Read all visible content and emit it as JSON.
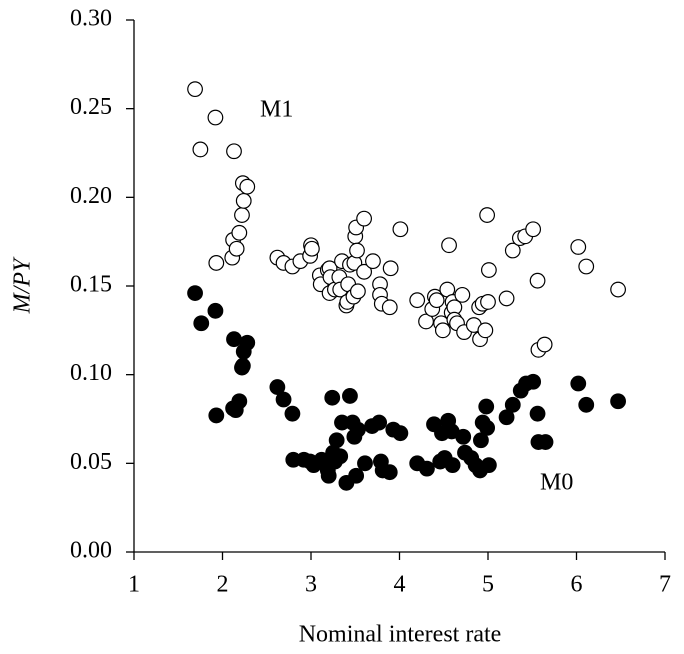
{
  "chart_data": {
    "type": "scatter",
    "x_label": "Nominal interest rate",
    "y_label": "M/PY",
    "xlim": [
      1,
      7
    ],
    "xticks": [
      1,
      2,
      3,
      4,
      5,
      6,
      7
    ],
    "ylim": [
      0,
      0.3
    ],
    "yticks": [
      {
        "value": 0,
        "label": "0.00"
      },
      0.05,
      {
        "value": 0.1,
        "label": "0.10"
      },
      0.15,
      {
        "value": 0.2,
        "label": "0.20"
      },
      0.25,
      {
        "value": 0.3,
        "label": "0.30"
      }
    ],
    "grid": false,
    "series": [
      {
        "name": "M1",
        "color": "#ffffff",
        "x": [
          1.69,
          1.75,
          1.92,
          1.93,
          2.13,
          2.11,
          2.12,
          2.16,
          2.19,
          2.22,
          2.24,
          2.23,
          2.28,
          2.62,
          2.69,
          2.79,
          2.88,
          2.99,
          3.0,
          3.01,
          3.1,
          3.11,
          3.19,
          3.21,
          3.22,
          3.21,
          3.27,
          3.32,
          3.33,
          3.35,
          3.4,
          3.41,
          3.42,
          3.44,
          3.48,
          3.49,
          3.5,
          3.51,
          3.52,
          3.53,
          3.6,
          3.6,
          3.7,
          3.78,
          3.78,
          3.8,
          3.89,
          3.9,
          4.01,
          4.2,
          4.3,
          4.37,
          4.4,
          4.42,
          4.47,
          4.49,
          4.54,
          4.56,
          4.59,
          4.6,
          4.62,
          4.62,
          4.65,
          4.71,
          4.73,
          4.84,
          4.9,
          4.91,
          4.94,
          4.97,
          4.99,
          5.0,
          5.01,
          5.21,
          5.28,
          5.36,
          5.42,
          5.51,
          5.56,
          5.57,
          5.64,
          6.02,
          6.11,
          6.47
        ],
        "values": [
          0.261,
          0.227,
          0.245,
          0.163,
          0.226,
          0.166,
          0.176,
          0.171,
          0.18,
          0.19,
          0.198,
          0.208,
          0.206,
          0.166,
          0.163,
          0.161,
          0.164,
          0.167,
          0.173,
          0.171,
          0.156,
          0.151,
          0.159,
          0.16,
          0.155,
          0.146,
          0.148,
          0.155,
          0.148,
          0.164,
          0.139,
          0.141,
          0.151,
          0.162,
          0.144,
          0.163,
          0.178,
          0.183,
          0.17,
          0.147,
          0.188,
          0.158,
          0.164,
          0.151,
          0.145,
          0.14,
          0.138,
          0.16,
          0.182,
          0.142,
          0.13,
          0.137,
          0.144,
          0.142,
          0.129,
          0.125,
          0.148,
          0.173,
          0.135,
          0.141,
          0.138,
          0.131,
          0.129,
          0.145,
          0.124,
          0.128,
          0.138,
          0.12,
          0.14,
          0.125,
          0.19,
          0.141,
          0.159,
          0.143,
          0.17,
          0.177,
          0.178,
          0.182,
          0.153,
          0.114,
          0.117,
          0.172,
          0.161,
          0.148
        ]
      },
      {
        "name": "M0",
        "color": "#000000",
        "x": [
          1.69,
          1.76,
          1.92,
          1.93,
          2.13,
          2.12,
          2.15,
          2.19,
          2.22,
          2.28,
          2.24,
          2.23,
          2.62,
          2.69,
          2.79,
          2.8,
          2.92,
          2.99,
          3.03,
          3.12,
          3.19,
          3.2,
          3.24,
          3.25,
          3.27,
          3.29,
          3.33,
          3.35,
          3.4,
          3.44,
          3.47,
          3.49,
          3.51,
          3.53,
          3.61,
          3.69,
          3.77,
          3.79,
          3.81,
          3.89,
          3.93,
          4.01,
          4.2,
          4.31,
          4.39,
          4.46,
          4.48,
          4.51,
          4.55,
          4.59,
          4.6,
          4.72,
          4.74,
          4.81,
          4.86,
          4.91,
          4.92,
          4.94,
          4.98,
          4.99,
          5.01,
          5.21,
          5.28,
          5.37,
          5.43,
          5.51,
          5.56,
          5.57,
          5.65,
          6.02,
          6.11,
          6.47
        ],
        "values": [
          0.146,
          0.129,
          0.136,
          0.077,
          0.12,
          0.081,
          0.08,
          0.085,
          0.104,
          0.118,
          0.113,
          0.105,
          0.093,
          0.086,
          0.078,
          0.052,
          0.052,
          0.051,
          0.049,
          0.052,
          0.046,
          0.043,
          0.087,
          0.056,
          0.051,
          0.063,
          0.054,
          0.073,
          0.039,
          0.088,
          0.073,
          0.065,
          0.043,
          0.069,
          0.05,
          0.071,
          0.073,
          0.051,
          0.046,
          0.045,
          0.069,
          0.067,
          0.05,
          0.047,
          0.072,
          0.051,
          0.067,
          0.053,
          0.074,
          0.068,
          0.049,
          0.065,
          0.056,
          0.053,
          0.049,
          0.046,
          0.063,
          0.073,
          0.082,
          0.07,
          0.049,
          0.076,
          0.083,
          0.091,
          0.095,
          0.096,
          0.078,
          0.062,
          0.062,
          0.095,
          0.083,
          0.085
        ]
      }
    ]
  }
}
